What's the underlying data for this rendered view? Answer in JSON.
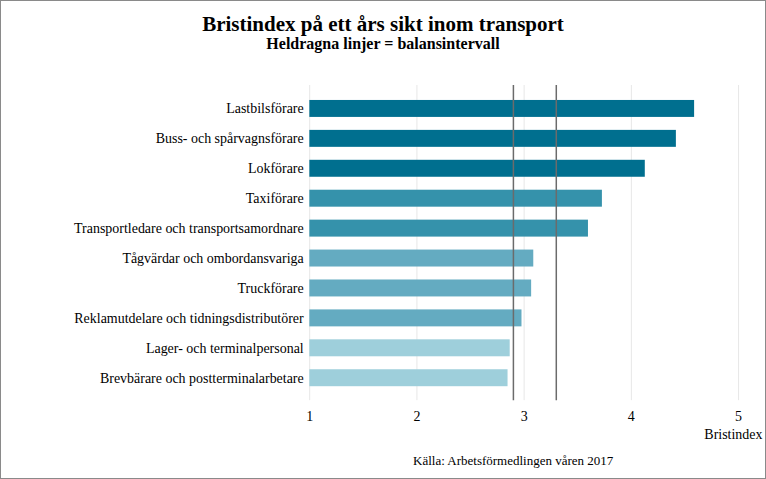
{
  "chart_data": {
    "type": "bar",
    "orientation": "horizontal",
    "title": "Bristindex på ett års sikt inom transport",
    "subtitle": "Heldragna linjer = balansintervall",
    "caption": "Källa: Arbetsförmedlingen våren 2017",
    "x_label": "Bristindex",
    "categories": [
      "Lastbilsförare",
      "Buss- och spårvagnsförare",
      "Lokförare",
      "Taxiförare",
      "Transportledare och transportsamordnare",
      "Tågvärdar och ombordansvariga",
      "Truckförare",
      "Reklamutdelare och tidningsdistributörer",
      "Lager- och terminalpersonal",
      "Brevbärare och postterminalarbetare"
    ],
    "values": [
      4.59,
      4.42,
      4.13,
      3.73,
      3.6,
      3.09,
      3.07,
      2.98,
      2.87,
      2.85
    ],
    "colors": [
      "#006f8f",
      "#006f8f",
      "#006f8f",
      "#3592ab",
      "#3592ab",
      "#64abc1",
      "#64abc1",
      "#64abc1",
      "#9ecfdb",
      "#9ecfdb"
    ],
    "balance_interval": [
      2.9,
      3.3
    ],
    "xlim": [
      1,
      5
    ],
    "xticks": [
      1,
      2,
      3,
      4,
      5
    ],
    "grid": true
  }
}
